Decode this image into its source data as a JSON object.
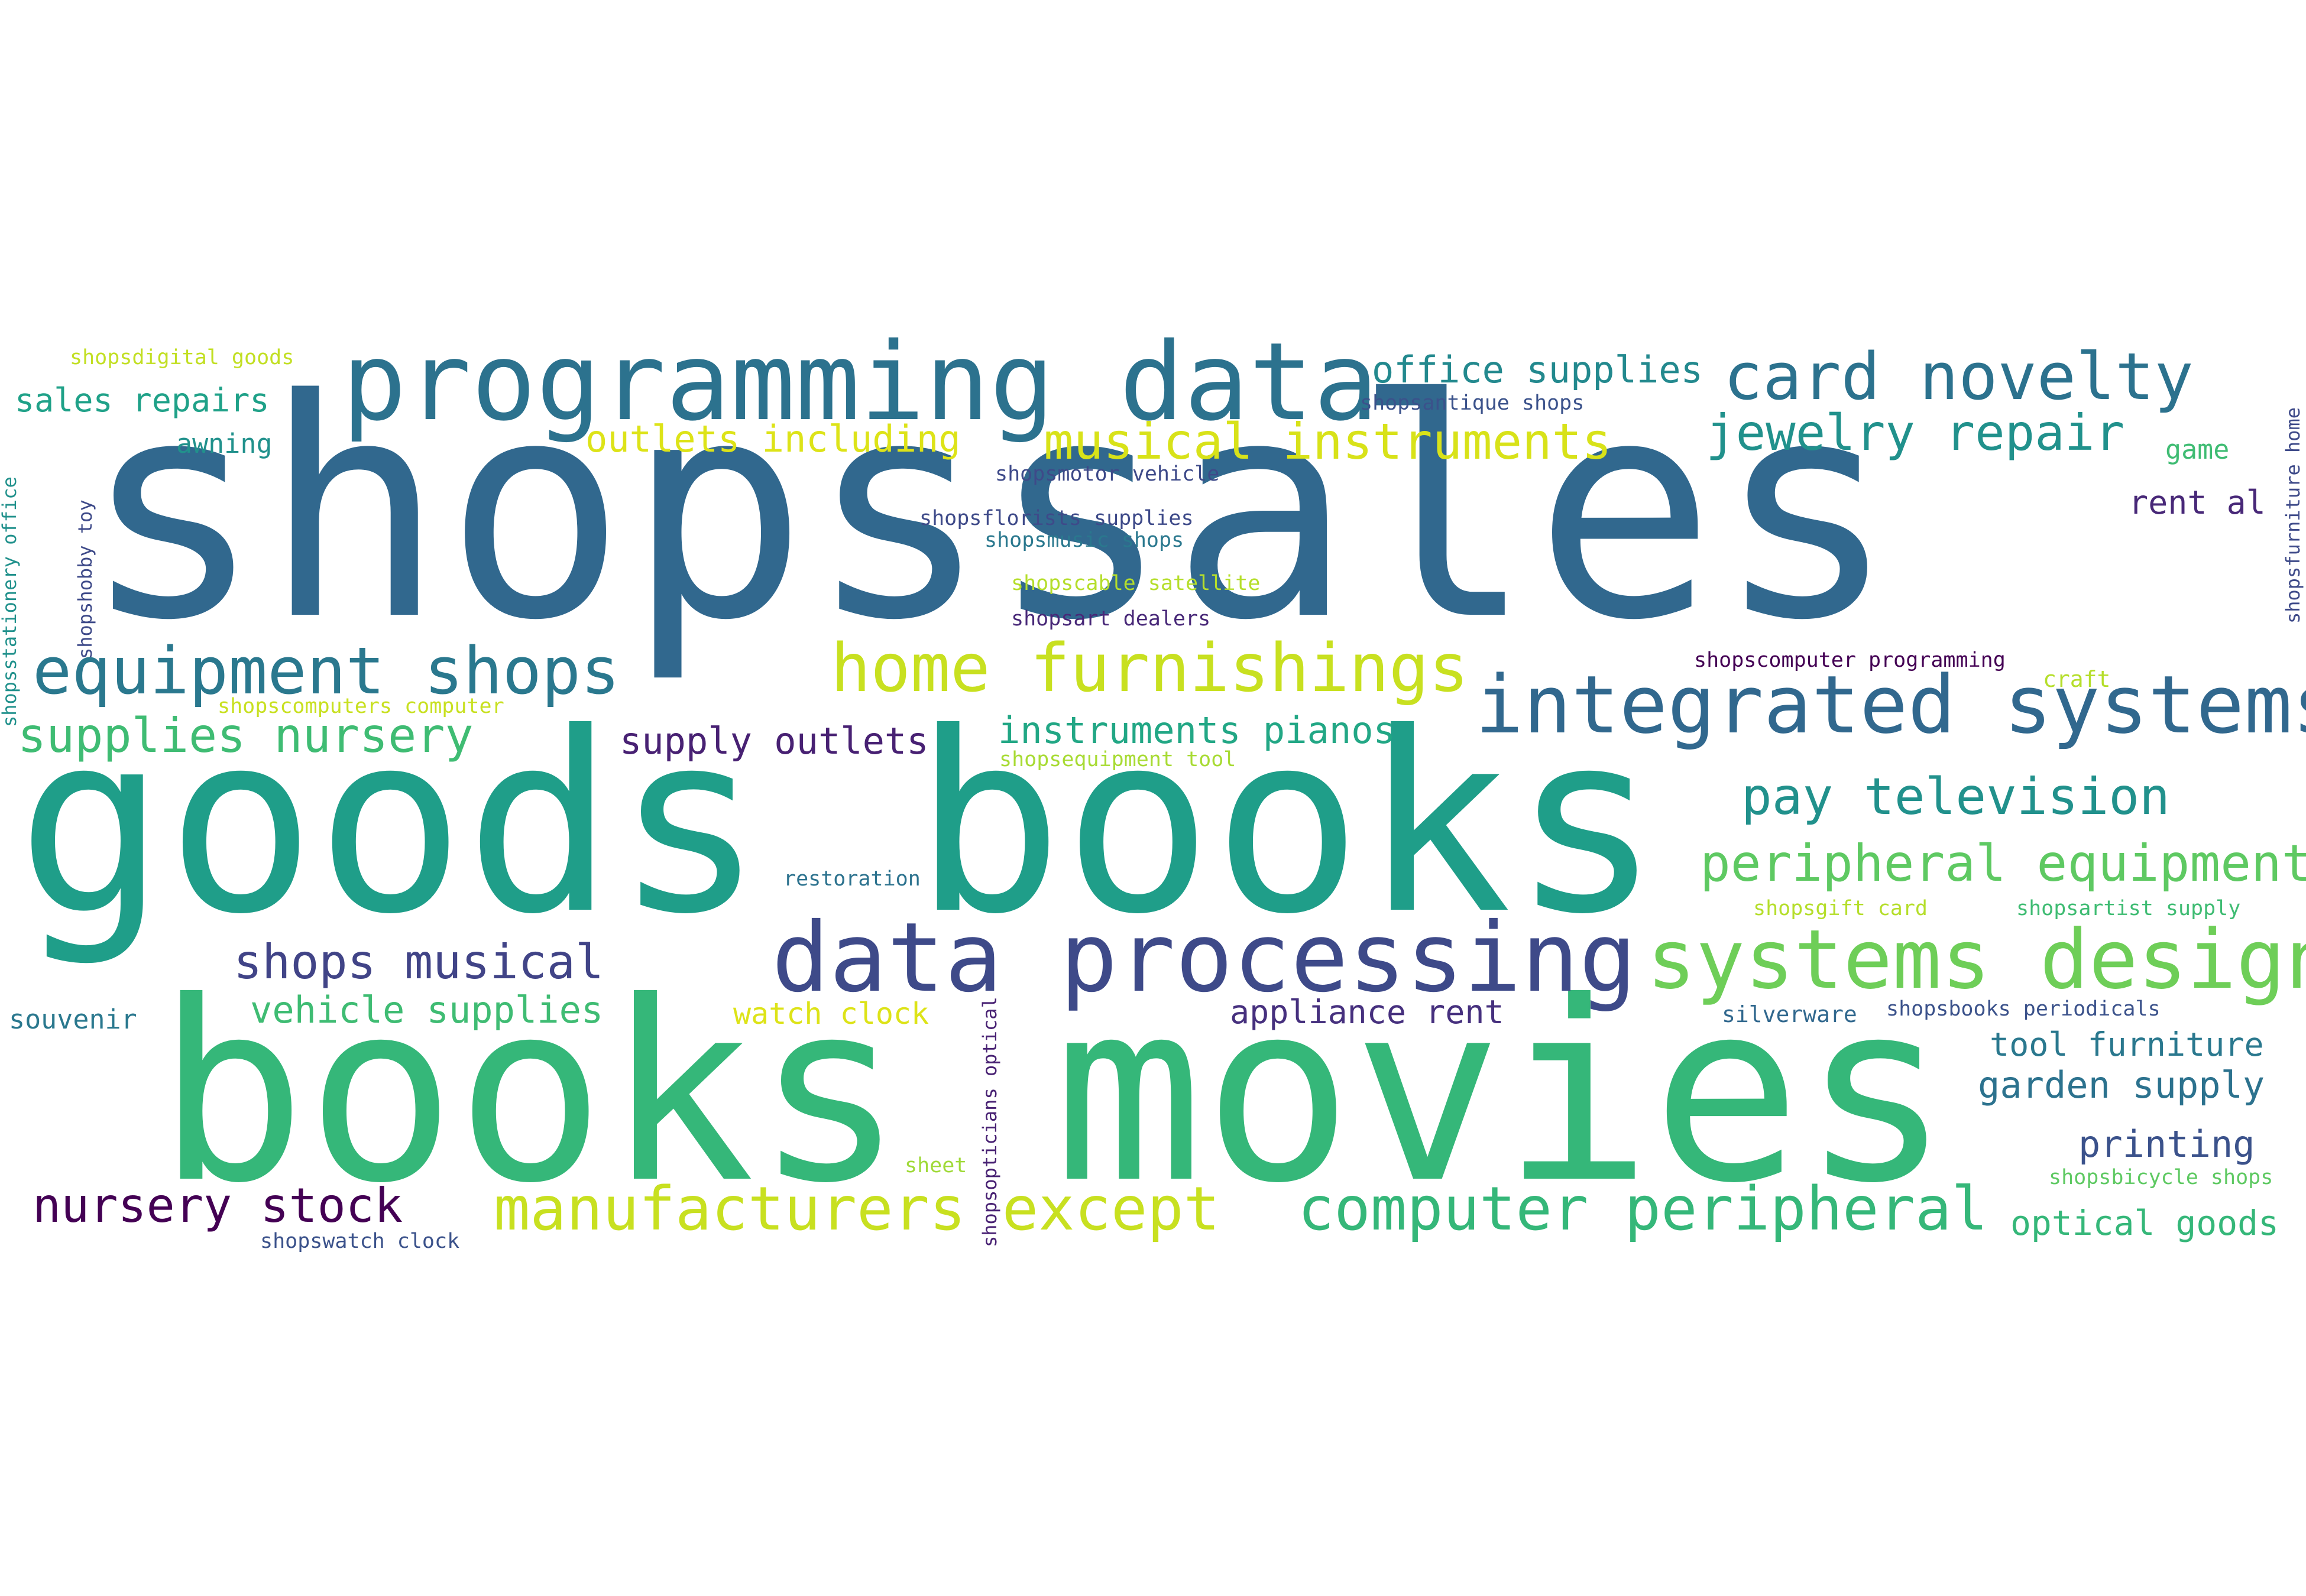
{
  "words": [
    {
      "text": "shopssales",
      "color": "#31688e"
    },
    {
      "text": "goods books",
      "color": "#1f9e89"
    },
    {
      "text": "books movies",
      "color": "#35b779"
    },
    {
      "text": "programming data",
      "color": "#2c728e"
    },
    {
      "text": "data processing",
      "color": "#3e4a89"
    },
    {
      "text": "integrated systems",
      "color": "#31688e"
    },
    {
      "text": "systems design",
      "color": "#6ece58"
    },
    {
      "text": "equipment shops",
      "color": "#2a788e"
    },
    {
      "text": "home furnishings",
      "color": "#c8e020"
    },
    {
      "text": "card novelty",
      "color": "#2c728e"
    },
    {
      "text": "computer peripheral",
      "color": "#35b779"
    },
    {
      "text": "manufacturers except",
      "color": "#c8e020"
    },
    {
      "text": "peripheral equipment",
      "color": "#5ec962"
    },
    {
      "text": "musical instruments",
      "color": "#d8e219"
    },
    {
      "text": "jewelry repair",
      "color": "#21918c"
    },
    {
      "text": "pay television",
      "color": "#21918c"
    },
    {
      "text": "supplies nursery",
      "color": "#3fbc73"
    },
    {
      "text": "shops musical",
      "color": "#414487"
    },
    {
      "text": "nursery stock",
      "color": "#440154"
    },
    {
      "text": "office supplies",
      "color": "#23898e"
    },
    {
      "text": "outlets including",
      "color": "#dde318"
    },
    {
      "text": "instruments pianos",
      "color": "#22a785"
    },
    {
      "text": "supply outlets",
      "color": "#482173"
    },
    {
      "text": "vehicle supplies",
      "color": "#3fbc73"
    },
    {
      "text": "appliance rent",
      "color": "#46307e"
    },
    {
      "text": "tool furniture",
      "color": "#2a788e"
    },
    {
      "text": "garden supply",
      "color": "#2c728e"
    },
    {
      "text": "printing",
      "color": "#3b528b"
    },
    {
      "text": "optical goods",
      "color": "#35b779"
    },
    {
      "text": "sales repairs",
      "color": "#1fa188"
    },
    {
      "text": "watch clock",
      "color": "#dde318"
    },
    {
      "text": "rent al",
      "color": "#482878"
    },
    {
      "text": "game",
      "color": "#3fbc73"
    },
    {
      "text": "awning",
      "color": "#21918c"
    },
    {
      "text": "souvenir",
      "color": "#2a788e"
    },
    {
      "text": "silverware",
      "color": "#31688e"
    },
    {
      "text": "craft",
      "color": "#b5de2b"
    },
    {
      "text": "restoration",
      "color": "#2c728e"
    },
    {
      "text": "sheet",
      "color": "#a0da39"
    },
    {
      "text": "shopsdigital goods",
      "color": "#c2df23"
    },
    {
      "text": "shopsantique shops",
      "color": "#3b528b"
    },
    {
      "text": "shopsmotor vehicle",
      "color": "#3e4a89"
    },
    {
      "text": "shopsflorists supplies",
      "color": "#3e4a89"
    },
    {
      "text": "shopsmusic shops",
      "color": "#2a788e"
    },
    {
      "text": "shopscable satellite",
      "color": "#b5de2b"
    },
    {
      "text": "shopsart dealers",
      "color": "#482878"
    },
    {
      "text": "shopscomputer programming",
      "color": "#440154"
    },
    {
      "text": "shopscomputers computer",
      "color": "#c8e020"
    },
    {
      "text": "shopsequipment tool",
      "color": "#a8db34"
    },
    {
      "text": "shopsgift card",
      "color": "#b5de2b"
    },
    {
      "text": "shopsartist supply",
      "color": "#3fbc73"
    },
    {
      "text": "shopsbooks periodicals",
      "color": "#3b528b"
    },
    {
      "text": "shopsbicycle shops",
      "color": "#5ec962"
    },
    {
      "text": "shopswatch clock",
      "color": "#3b528b"
    },
    {
      "text": "shopsstationery office",
      "color": "#21918c"
    },
    {
      "text": "shopshobby toy",
      "color": "#3e4a89"
    },
    {
      "text": "shopsopticians optical",
      "color": "#482173"
    },
    {
      "text": "shopsfurniture home",
      "color": "#3e4a89"
    }
  ]
}
